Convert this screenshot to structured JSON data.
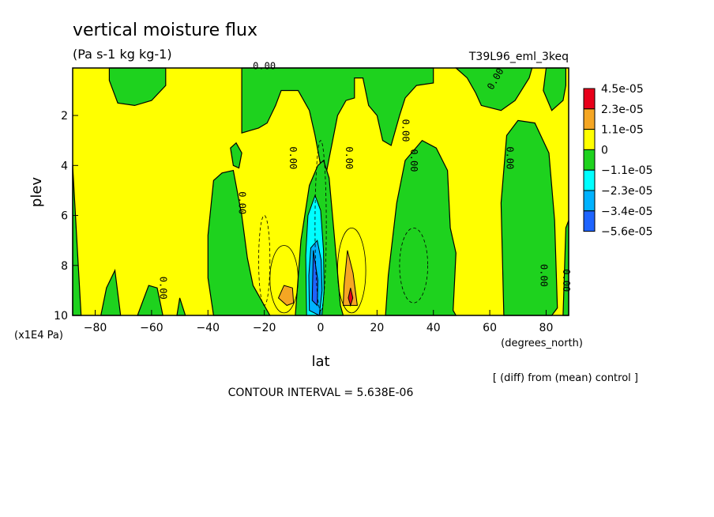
{
  "chart_data": {
    "type": "heatmap",
    "title": "vertical moisture flux",
    "subtitle": "(Pa s-1 kg kg-1)",
    "experiment": "T39L96_eml_3keq",
    "xlabel": "lat",
    "x_units": "(degrees_north)",
    "ylabel": "plev",
    "y_units": "(x1E4 Pa)",
    "xlim": [
      -88,
      88
    ],
    "ylim": [
      10,
      0.1
    ],
    "x_ticks": [
      -80,
      -60,
      -40,
      -20,
      0,
      20,
      40,
      60,
      80
    ],
    "x_tick_labels": [
      "−80",
      "−60",
      "−40",
      "−20",
      "0",
      "20",
      "40",
      "60",
      "80"
    ],
    "y_ticks": [
      2,
      4,
      6,
      8,
      10
    ],
    "y_tick_labels": [
      "2",
      "4",
      "6",
      "8",
      "10"
    ],
    "note": "[ (diff) from (mean) control ]",
    "contour_interval": "CONTOUR INTERVAL = 5.638E-06",
    "contour_label": "0.00",
    "legend": [
      {
        "label": "4.5e-05",
        "color": "#e8001a"
      },
      {
        "label": "2.3e-05",
        "color": "#f5a623"
      },
      {
        "label": "1.1e-05",
        "color": "#ffff00"
      },
      {
        "label": "0",
        "color": "#1ed21e"
      },
      {
        "label": "−1.1e-05",
        "color": "#00ffff"
      },
      {
        "label": "−2.3e-05",
        "color": "#00b2ff"
      },
      {
        "label": "−3.4e-05",
        "color": "#1e64ff"
      },
      {
        "label": "−5.6e-05",
        "color": ""
      }
    ],
    "legend_colors": [
      "#e8001a",
      "#f5a623",
      "#ffff00",
      "#1ed21e",
      "#00ffff",
      "#00b2ff",
      "#1e64ff"
    ],
    "field_colors": {
      "positive": "#ffff00",
      "negative": "#1ed21e",
      "line": "#000000"
    },
    "green_regions": [
      {
        "name": "south-pole-column",
        "pts": [
          [
            -88,
            10
          ],
          [
            -88,
            4.0
          ],
          [
            -86,
            8.0
          ],
          [
            -85,
            10
          ]
        ]
      },
      {
        "name": "southern-midlat-band",
        "pts": [
          [
            -78,
            10
          ],
          [
            -76,
            8.9
          ],
          [
            -73,
            8.2
          ],
          [
            -71,
            10
          ]
        ]
      },
      {
        "name": "southern-column-a",
        "pts": [
          [
            -65,
            10
          ],
          [
            -63,
            9.4
          ],
          [
            -61,
            8.8
          ],
          [
            -58,
            8.9
          ],
          [
            -56,
            10
          ]
        ]
      },
      {
        "name": "southern-column-b",
        "pts": [
          [
            -51,
            10
          ],
          [
            -50,
            9.3
          ],
          [
            -48,
            10
          ]
        ]
      },
      {
        "name": "upper-left-blob",
        "pts": [
          [
            -75,
            0.1
          ],
          [
            -75,
            0.6
          ],
          [
            -72,
            1.5
          ],
          [
            -66,
            1.6
          ],
          [
            -60,
            1.4
          ],
          [
            -55,
            0.8
          ],
          [
            -55,
            0.1
          ]
        ]
      },
      {
        "name": "upper-center-region",
        "pts": [
          [
            -28,
            0.1
          ],
          [
            -28,
            2.7
          ],
          [
            -22,
            2.5
          ],
          [
            -19,
            2.3
          ],
          [
            -16,
            1.6
          ],
          [
            -14,
            1.0
          ],
          [
            -8,
            1.0
          ],
          [
            -4,
            1.8
          ],
          [
            -2,
            2.8
          ],
          [
            0,
            4.0
          ],
          [
            1,
            8.0
          ],
          [
            2,
            4.3
          ],
          [
            6,
            2.0
          ],
          [
            9,
            1.4
          ],
          [
            12,
            1.3
          ],
          [
            12,
            0.5
          ],
          [
            15,
            0.5
          ],
          [
            17,
            1.6
          ],
          [
            20,
            2.0
          ],
          [
            22,
            3.0
          ],
          [
            25,
            3.2
          ],
          [
            28,
            2.0
          ],
          [
            30,
            1.3
          ],
          [
            34,
            0.8
          ],
          [
            40,
            0.7
          ],
          [
            40,
            0.1
          ]
        ]
      },
      {
        "name": "upper-right-blob",
        "pts": [
          [
            48,
            0.1
          ],
          [
            52,
            0.5
          ],
          [
            55,
            1.1
          ],
          [
            57,
            1.6
          ],
          [
            64,
            1.8
          ],
          [
            69,
            1.4
          ],
          [
            74,
            0.5
          ],
          [
            75,
            0.1
          ]
        ]
      },
      {
        "name": "far-right-strip",
        "pts": [
          [
            80,
            0.1
          ],
          [
            79,
            1.0
          ],
          [
            82,
            1.8
          ],
          [
            86,
            1.4
          ],
          [
            87,
            0.8
          ],
          [
            87,
            0.1
          ]
        ]
      },
      {
        "name": "mid-left-column",
        "pts": [
          [
            -38,
            10
          ],
          [
            -40,
            8.5
          ],
          [
            -40,
            6.8
          ],
          [
            -38,
            4.6
          ],
          [
            -35,
            4.3
          ],
          [
            -31,
            4.2
          ],
          [
            -28,
            6.0
          ],
          [
            -26,
            7.7
          ],
          [
            -24,
            8.8
          ],
          [
            -20,
            9.6
          ],
          [
            -18,
            10
          ]
        ]
      },
      {
        "name": "small-left-blob",
        "pts": [
          [
            -32,
            3.3
          ],
          [
            -30,
            3.1
          ],
          [
            -28,
            3.5
          ],
          [
            -29,
            4.1
          ],
          [
            -31,
            4.0
          ]
        ]
      },
      {
        "name": "equatorial-trough",
        "pts": [
          [
            -9,
            10
          ],
          [
            -7,
            7.0
          ],
          [
            -4,
            4.8
          ],
          [
            -1,
            4.0
          ],
          [
            1,
            3.8
          ],
          [
            3,
            4.5
          ],
          [
            5,
            7.0
          ],
          [
            7,
            9.6
          ],
          [
            8,
            10
          ]
        ]
      },
      {
        "name": "trop-column-right",
        "pts": [
          [
            23,
            10
          ],
          [
            24,
            8.4
          ],
          [
            27,
            5.5
          ],
          [
            30,
            3.8
          ],
          [
            36,
            3.0
          ],
          [
            41,
            3.3
          ],
          [
            45,
            4.2
          ],
          [
            46,
            6.5
          ],
          [
            48,
            7.5
          ],
          [
            47,
            9.8
          ],
          [
            48,
            10
          ]
        ]
      },
      {
        "name": "high-lat-right-column",
        "pts": [
          [
            65,
            10
          ],
          [
            64,
            5.5
          ],
          [
            66,
            2.8
          ],
          [
            70,
            2.2
          ],
          [
            76,
            2.3
          ],
          [
            81,
            3.5
          ],
          [
            83,
            6.2
          ],
          [
            84,
            9.7
          ],
          [
            82,
            10
          ]
        ]
      },
      {
        "name": "right-edge-strip",
        "pts": [
          [
            86,
            10
          ],
          [
            87,
            6.5
          ],
          [
            88,
            6.2
          ],
          [
            88,
            10
          ]
        ]
      }
    ],
    "shaded_regions": [
      {
        "name": "cyan-core",
        "color": "#00ffff",
        "pts": [
          [
            -5,
            10
          ],
          [
            -5.3,
            7.6
          ],
          [
            -4.5,
            6.0
          ],
          [
            -2,
            5.2
          ],
          [
            0,
            5.8
          ],
          [
            1,
            7.4
          ],
          [
            1.2,
            9.0
          ],
          [
            0.5,
            10
          ]
        ]
      },
      {
        "name": "blue-core",
        "color": "#00b2ff",
        "pts": [
          [
            -4,
            9.8
          ],
          [
            -4.2,
            8.4
          ],
          [
            -3.5,
            7.3
          ],
          [
            -1.2,
            7.0
          ],
          [
            0.2,
            7.8
          ],
          [
            0.5,
            9.0
          ],
          [
            -0.5,
            10
          ]
        ]
      },
      {
        "name": "dark-blue-core",
        "color": "#1e64ff",
        "pts": [
          [
            -3,
            9.4
          ],
          [
            -2.6,
            7.4
          ],
          [
            -1,
            8.6
          ],
          [
            -1.2,
            9.6
          ]
        ]
      },
      {
        "name": "orange-south",
        "color": "#f5a623",
        "pts": [
          [
            -15,
            9.3
          ],
          [
            -13,
            8.8
          ],
          [
            -10,
            8.9
          ],
          [
            -9.6,
            9.5
          ],
          [
            -12,
            9.6
          ]
        ]
      },
      {
        "name": "orange-north",
        "color": "#f5a623",
        "pts": [
          [
            8,
            9.6
          ],
          [
            8.3,
            8.8
          ],
          [
            9.5,
            7.4
          ],
          [
            11.5,
            8.3
          ],
          [
            13,
            9.6
          ]
        ]
      },
      {
        "name": "red-core",
        "color": "#e8001a",
        "pts": [
          [
            9.8,
            9.3
          ],
          [
            10.6,
            8.9
          ],
          [
            11.4,
            9.3
          ],
          [
            10.6,
            9.6
          ]
        ]
      }
    ]
  }
}
